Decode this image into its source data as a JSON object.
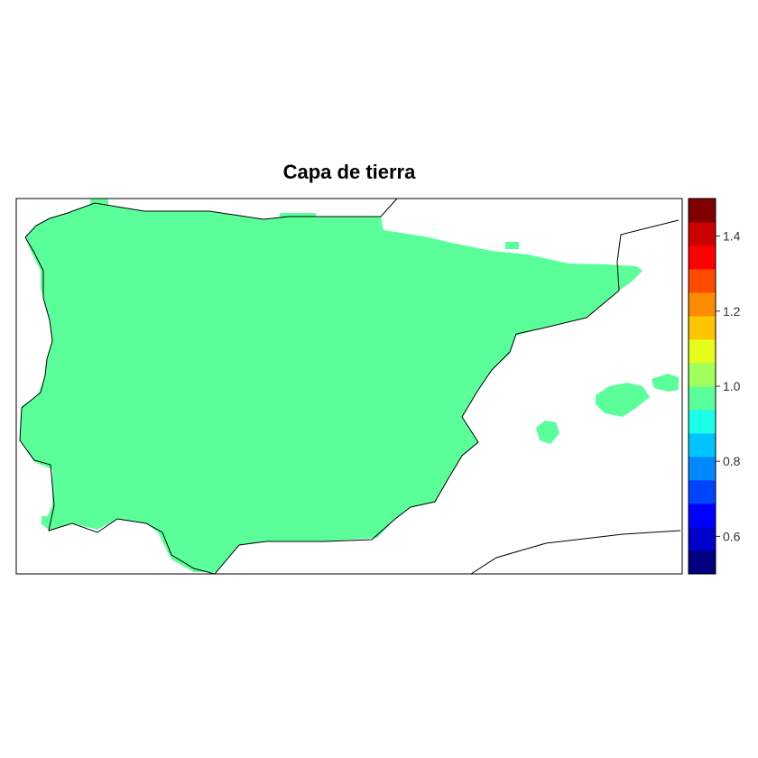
{
  "title": "Capa de tierra",
  "map": {
    "land_color": "#5BFF9A",
    "coastline_color": "#000000",
    "frame_color": "#000000"
  },
  "legend": {
    "min": 0.5,
    "max": 1.5,
    "step": 0.067,
    "colors": [
      "#000080",
      "#0000CD",
      "#0000FF",
      "#0044FF",
      "#0088FF",
      "#00C4FF",
      "#1AFFE6",
      "#5BFF9A",
      "#A0FF5C",
      "#E6FF1A",
      "#FFC400",
      "#FF8C00",
      "#FF4A00",
      "#FF0000",
      "#CC0000",
      "#800000"
    ],
    "ticks": [
      {
        "value": 0.6,
        "label": "0.6"
      },
      {
        "value": 0.8,
        "label": "0.8"
      },
      {
        "value": 1.0,
        "label": "1.0"
      },
      {
        "value": 1.2,
        "label": "1.2"
      },
      {
        "value": 1.4,
        "label": "1.4"
      }
    ]
  }
}
